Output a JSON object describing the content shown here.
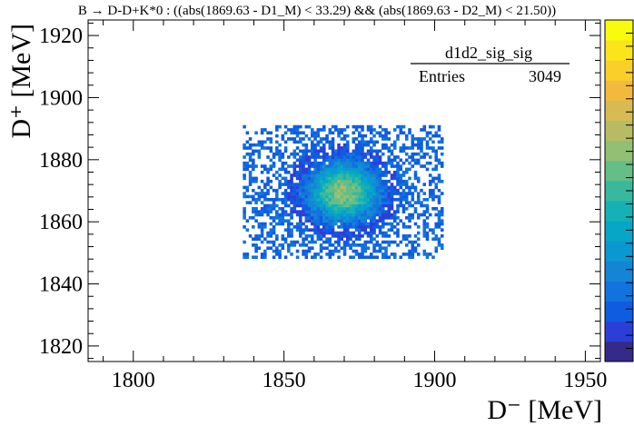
{
  "chart_data": {
    "type": "heatmap",
    "title": "B → D-D+K*0 : ((abs(1869.63 - D1_M) < 33.29) && (abs(1869.63 - D2_M) < 21.50))",
    "xlabel": "D⁻ [MeV]",
    "ylabel": "D⁺ [MeV]",
    "xlim": [
      1785,
      1955
    ],
    "ylim": [
      1815,
      1925
    ],
    "xticks": [
      1800,
      1850,
      1900,
      1950
    ],
    "yticks": [
      1820,
      1840,
      1860,
      1880,
      1900,
      1920
    ],
    "x_tick_labels": [
      "1800",
      "1850",
      "1900",
      "1950"
    ],
    "y_tick_labels": [
      "1820",
      "1840",
      "1860",
      "1880",
      "1900",
      "1920"
    ],
    "stats_box": {
      "name": "d1d2_sig_sig",
      "entries_label": "Entries",
      "entries_value": "3049"
    },
    "bins": {
      "x_min": 1836.34,
      "x_max": 1902.92,
      "y_min": 1848.13,
      "y_max": 1891.13,
      "nx": 68,
      "ny": 44
    },
    "peak": {
      "x": 1869.63,
      "y": 1869.63,
      "sigma_x": 8.0,
      "sigma_y": 6.5
    },
    "color_scale": "rainbow (dark blue → yellow)",
    "palette": [
      "#352a87",
      "#2b3fd8",
      "#0f5ce1",
      "#1272de",
      "#1485d4",
      "#0a98d1",
      "#06a7c6",
      "#15b1b4",
      "#38b99e",
      "#65be86",
      "#92bf73",
      "#b7bc63",
      "#d8ba55",
      "#f3b93d",
      "#f9cf2a",
      "#f9e51a",
      "#f9fb0e"
    ],
    "grid": false,
    "legend": "none"
  }
}
